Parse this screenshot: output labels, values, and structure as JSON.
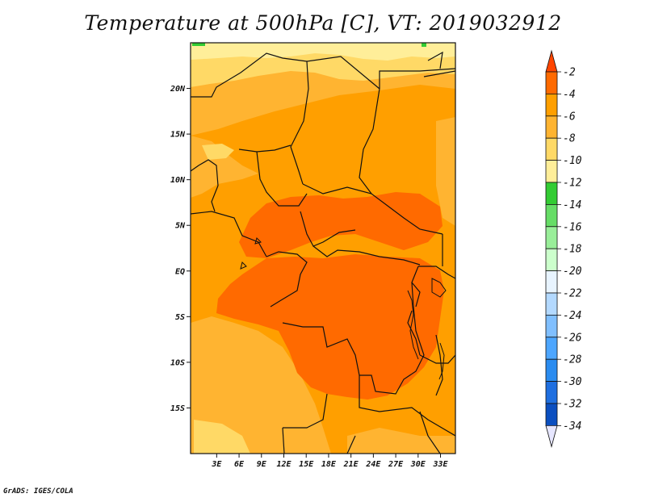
{
  "title": "Temperature at 500hPa [C], VT: 2019032912",
  "credit": "GrADS: IGES/COLA",
  "map": {
    "lat_range": [
      -20,
      25
    ],
    "lon_range": [
      -0.5,
      35
    ],
    "lat_ticks": [
      {
        "value": 20,
        "label": "20N"
      },
      {
        "value": 15,
        "label": "15N"
      },
      {
        "value": 10,
        "label": "10N"
      },
      {
        "value": 5,
        "label": "5N"
      },
      {
        "value": 0,
        "label": "EQ"
      },
      {
        "value": -5,
        "label": "5S"
      },
      {
        "value": -10,
        "label": "10S"
      },
      {
        "value": -15,
        "label": "15S"
      }
    ],
    "lon_ticks": [
      {
        "value": 3,
        "label": "3E"
      },
      {
        "value": 6,
        "label": "6E"
      },
      {
        "value": 9,
        "label": "9E"
      },
      {
        "value": 12,
        "label": "12E"
      },
      {
        "value": 15,
        "label": "15E"
      },
      {
        "value": 18,
        "label": "18E"
      },
      {
        "value": 21,
        "label": "21E"
      },
      {
        "value": 24,
        "label": "24E"
      },
      {
        "value": 27,
        "label": "27E"
      },
      {
        "value": 30,
        "label": "30E"
      },
      {
        "value": 33,
        "label": "33E"
      }
    ]
  },
  "colors": {
    "band_m4_m2": "#ff6a00",
    "band_m6_m4": "#ff9f00",
    "band_m8_m6": "#ffb431",
    "band_m10_m8": "#ffd966",
    "band_m12_m10": "#ffee99",
    "band_m14_m12": "#33cc33",
    "outline": "#111111"
  },
  "legend": {
    "labels": [
      "-2",
      "-4",
      "-6",
      "-8",
      "-10",
      "-12",
      "-14",
      "-16",
      "-18",
      "-20",
      "-22",
      "-24",
      "-26",
      "-28",
      "-30",
      "-32",
      "-34"
    ],
    "top_color": "#ff4500",
    "bottom_color": "#e6e6ff",
    "colors": [
      "#ff6a00",
      "#ff9f00",
      "#ffb431",
      "#ffd966",
      "#ffee99",
      "#33cc33",
      "#66dd66",
      "#99ee99",
      "#ccffcc",
      "#e8f4ff",
      "#b3d9ff",
      "#80bfff",
      "#4da6ff",
      "#2a8cf0",
      "#1f6fe0",
      "#0b4fc0",
      "#0a1e78"
    ]
  }
}
